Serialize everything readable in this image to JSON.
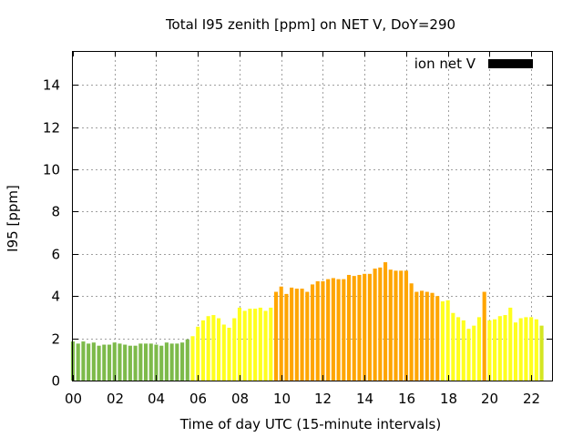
{
  "chart_data": {
    "type": "bar",
    "title": "Total I95 zenith [ppm] on NET V, DoY=290",
    "xlabel": "Time of day UTC (15-minute intervals)",
    "ylabel": "I95 [ppm]",
    "legend": {
      "label": "ion net V",
      "color": "#000000",
      "position": "top-right"
    },
    "xlim": [
      0,
      23
    ],
    "ylim": [
      0,
      15.6
    ],
    "grid": true,
    "bar_interval_hours": 0.25,
    "x_ticks": [
      0,
      2,
      4,
      6,
      8,
      10,
      12,
      14,
      16,
      18,
      20,
      22
    ],
    "x_tick_labels": [
      "00",
      "02",
      "04",
      "06",
      "08",
      "10",
      "12",
      "14",
      "16",
      "18",
      "20",
      "22"
    ],
    "y_ticks": [
      0,
      2,
      4,
      6,
      8,
      10,
      12,
      14
    ],
    "y_tick_labels": [
      "0",
      "2",
      "4",
      "6",
      "8",
      "10",
      "12",
      "14"
    ],
    "color_classes": {
      "green": "#7dba4a",
      "yellow": "#ffff1e",
      "orange": "#ffa500",
      "yellow-green": "#d4e622"
    },
    "series": [
      {
        "name": "ion net V",
        "values": [
          1.85,
          1.75,
          1.85,
          1.75,
          1.8,
          1.65,
          1.7,
          1.7,
          1.8,
          1.75,
          1.7,
          1.65,
          1.65,
          1.75,
          1.75,
          1.75,
          1.7,
          1.65,
          1.8,
          1.75,
          1.75,
          1.8,
          1.95,
          2.1,
          2.55,
          2.85,
          3.05,
          3.1,
          2.95,
          2.65,
          2.5,
          2.95,
          3.45,
          3.3,
          3.4,
          3.4,
          3.45,
          3.3,
          3.45,
          4.2,
          4.45,
          4.1,
          4.4,
          4.35,
          4.35,
          4.2,
          4.55,
          4.7,
          4.7,
          4.8,
          4.85,
          4.8,
          4.8,
          5.0,
          4.95,
          5.0,
          5.05,
          5.05,
          5.3,
          5.35,
          5.6,
          5.25,
          5.2,
          5.2,
          5.2,
          4.6,
          4.2,
          4.25,
          4.2,
          4.15,
          4.0,
          3.75,
          3.8,
          3.2,
          3.0,
          2.85,
          2.45,
          2.6,
          3.0,
          4.2,
          2.85,
          2.9,
          3.05,
          3.1,
          3.45,
          2.75,
          2.95,
          3.0,
          3.0,
          2.9,
          2.6
        ],
        "colors": [
          "green",
          "green",
          "green",
          "green",
          "green",
          "green",
          "green",
          "green",
          "green",
          "green",
          "green",
          "green",
          "green",
          "green",
          "green",
          "green",
          "green",
          "green",
          "green",
          "green",
          "green",
          "green",
          "green",
          "yellow",
          "yellow",
          "yellow",
          "yellow",
          "yellow",
          "yellow",
          "yellow",
          "yellow",
          "yellow",
          "yellow",
          "yellow",
          "yellow",
          "yellow",
          "yellow",
          "yellow",
          "yellow",
          "orange",
          "orange",
          "orange",
          "orange",
          "orange",
          "orange",
          "orange",
          "orange",
          "orange",
          "orange",
          "orange",
          "orange",
          "orange",
          "orange",
          "orange",
          "orange",
          "orange",
          "orange",
          "orange",
          "orange",
          "orange",
          "orange",
          "orange",
          "orange",
          "orange",
          "orange",
          "orange",
          "orange",
          "orange",
          "orange",
          "orange",
          "orange",
          "yellow",
          "yellow",
          "yellow",
          "yellow",
          "yellow",
          "yellow",
          "yellow",
          "yellow",
          "orange",
          "yellow",
          "yellow",
          "yellow",
          "yellow",
          "yellow",
          "yellow",
          "yellow",
          "yellow",
          "yellow",
          "yellow",
          "yellow-green"
        ]
      }
    ]
  }
}
